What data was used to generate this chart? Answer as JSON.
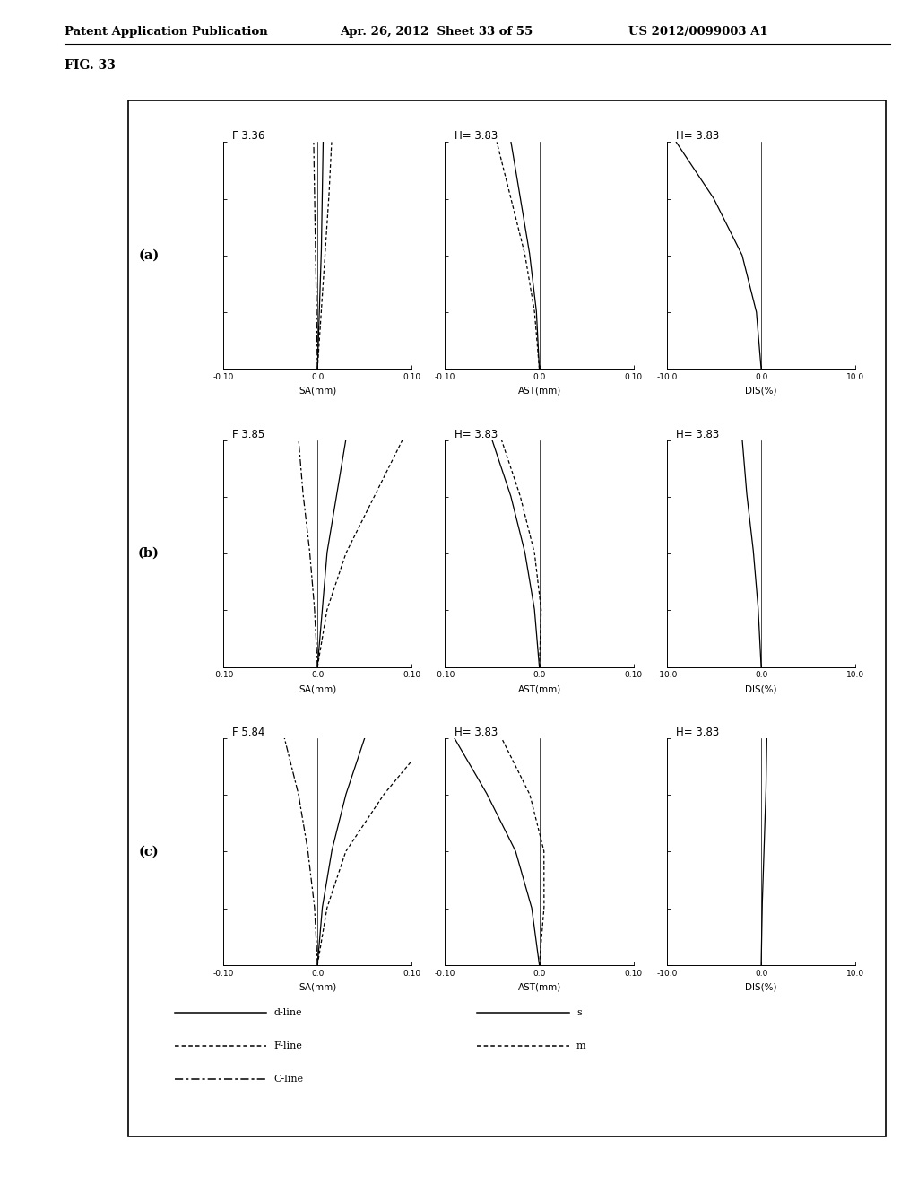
{
  "header_left": "Patent Application Publication",
  "header_mid": "Apr. 26, 2012  Sheet 33 of 55",
  "header_right": "US 2012/0099003 A1",
  "fig_label": "FIG. 33",
  "rows": [
    {
      "label": "(a)",
      "sa_title": "F 3.36",
      "ast_title": "H= 3.83",
      "dis_title": "H= 3.83"
    },
    {
      "label": "(b)",
      "sa_title": "F 3.85",
      "ast_title": "H= 3.83",
      "dis_title": "H= 3.83"
    },
    {
      "label": "(c)",
      "sa_title": "F 5.84",
      "ast_title": "H= 3.83",
      "dis_title": "H= 3.83"
    }
  ],
  "sa_xlim": [
    -0.1,
    0.1
  ],
  "ast_xlim": [
    -0.1,
    0.1
  ],
  "dis_xlim": [
    -10.0,
    10.0
  ],
  "ylim": [
    0.0,
    1.0
  ],
  "sa_xticks": [
    -0.1,
    0.0,
    0.1
  ],
  "ast_xticks": [
    -0.1,
    0.0,
    0.1
  ],
  "dis_xticks": [
    -10.0,
    0.0,
    10.0
  ],
  "yticks": [
    0.0,
    0.25,
    0.5,
    0.75,
    1.0
  ],
  "sa_xlabel": "SA(mm)",
  "ast_xlabel": "AST(mm)",
  "dis_xlabel": "DIS(%)",
  "bg_color": "#ffffff",
  "sa_curves": [
    {
      "d": [
        0.0,
        0.002,
        0.004,
        0.005,
        0.006
      ],
      "F": [
        0.0,
        0.004,
        0.008,
        0.012,
        0.015
      ],
      "C": [
        0.0,
        -0.001,
        -0.002,
        -0.003,
        -0.004
      ]
    },
    {
      "d": [
        0.0,
        0.005,
        0.01,
        0.02,
        0.03
      ],
      "F": [
        0.0,
        0.01,
        0.03,
        0.06,
        0.09
      ],
      "C": [
        0.0,
        -0.003,
        -0.008,
        -0.015,
        -0.02
      ]
    },
    {
      "d": [
        0.0,
        0.005,
        0.015,
        0.03,
        0.05
      ],
      "F": [
        0.0,
        0.01,
        0.03,
        0.07,
        0.12
      ],
      "C": [
        0.0,
        -0.003,
        -0.01,
        -0.02,
        -0.035
      ]
    }
  ],
  "ast_curves": [
    {
      "s": [
        0.0,
        -0.003,
        -0.01,
        -0.02,
        -0.03
      ],
      "m": [
        0.0,
        -0.005,
        -0.015,
        -0.03,
        -0.045
      ]
    },
    {
      "s": [
        0.0,
        -0.005,
        -0.015,
        -0.03,
        -0.05
      ],
      "m": [
        0.0,
        0.002,
        -0.005,
        -0.02,
        -0.04
      ]
    },
    {
      "s": [
        0.0,
        -0.008,
        -0.025,
        -0.055,
        -0.09
      ],
      "m": [
        0.0,
        0.005,
        0.005,
        -0.01,
        -0.04
      ]
    }
  ],
  "dis_curves": [
    {
      "d": [
        0.0,
        -0.5,
        -2.0,
        -5.0,
        -9.0
      ]
    },
    {
      "d": [
        0.0,
        -0.3,
        -0.8,
        -1.5,
        -2.0
      ]
    },
    {
      "d": [
        0.0,
        0.1,
        0.3,
        0.5,
        0.6
      ]
    }
  ]
}
